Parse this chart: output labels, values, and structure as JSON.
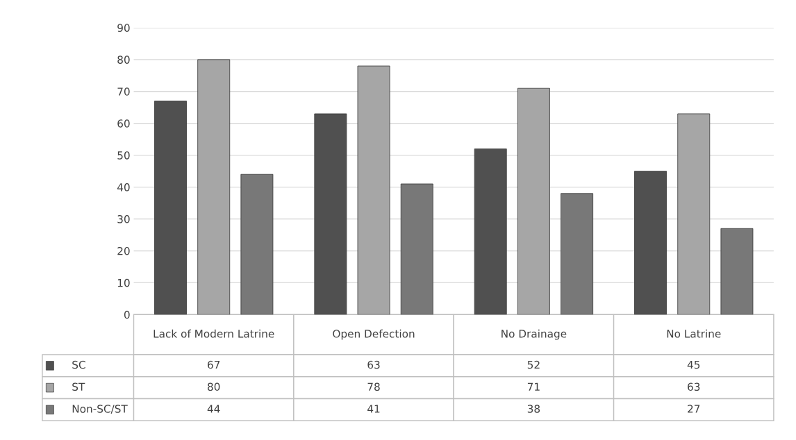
{
  "chart_data": {
    "type": "bar",
    "categories": [
      "Lack of Modern Latrine",
      "Open Defection",
      "No Drainage",
      "No Latrine"
    ],
    "series": [
      {
        "name": "SC",
        "color": "#505050",
        "values": [
          67,
          63,
          52,
          45
        ]
      },
      {
        "name": "ST",
        "color": "#a6a6a6",
        "values": [
          80,
          78,
          71,
          63
        ]
      },
      {
        "name": "Non-SC/ST",
        "color": "#787878",
        "values": [
          44,
          41,
          38,
          27
        ]
      }
    ],
    "ylim": [
      0,
      90
    ],
    "yticks": [
      0,
      10,
      20,
      30,
      40,
      50,
      60,
      70,
      80,
      90
    ],
    "grid": "y",
    "data_labels": true,
    "legend": "bottom left"
  }
}
